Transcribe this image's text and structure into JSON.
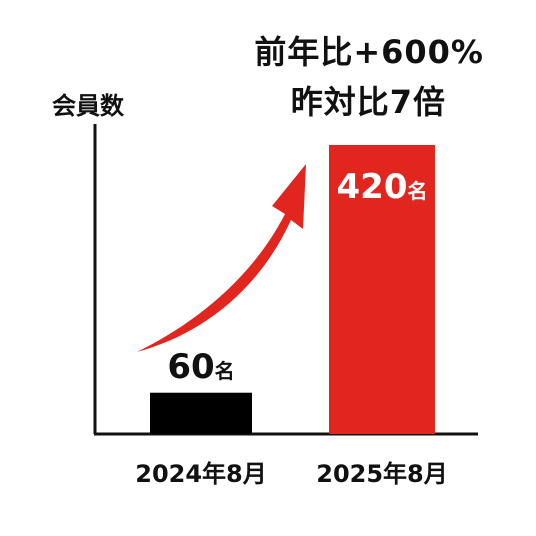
{
  "chart_data": {
    "type": "bar",
    "ylabel": "会員数",
    "categories": [
      "2024年8月",
      "2025年8月"
    ],
    "values": [
      60,
      420
    ],
    "value_unit": "名",
    "colors": [
      "#000000",
      "#e0261e"
    ],
    "ylim": [
      0,
      500
    ],
    "annotations": {
      "growth_line1": "前年比+600%",
      "growth_line2": "昨対比7倍"
    },
    "arrow_color": "#e0261e",
    "grid": false
  }
}
